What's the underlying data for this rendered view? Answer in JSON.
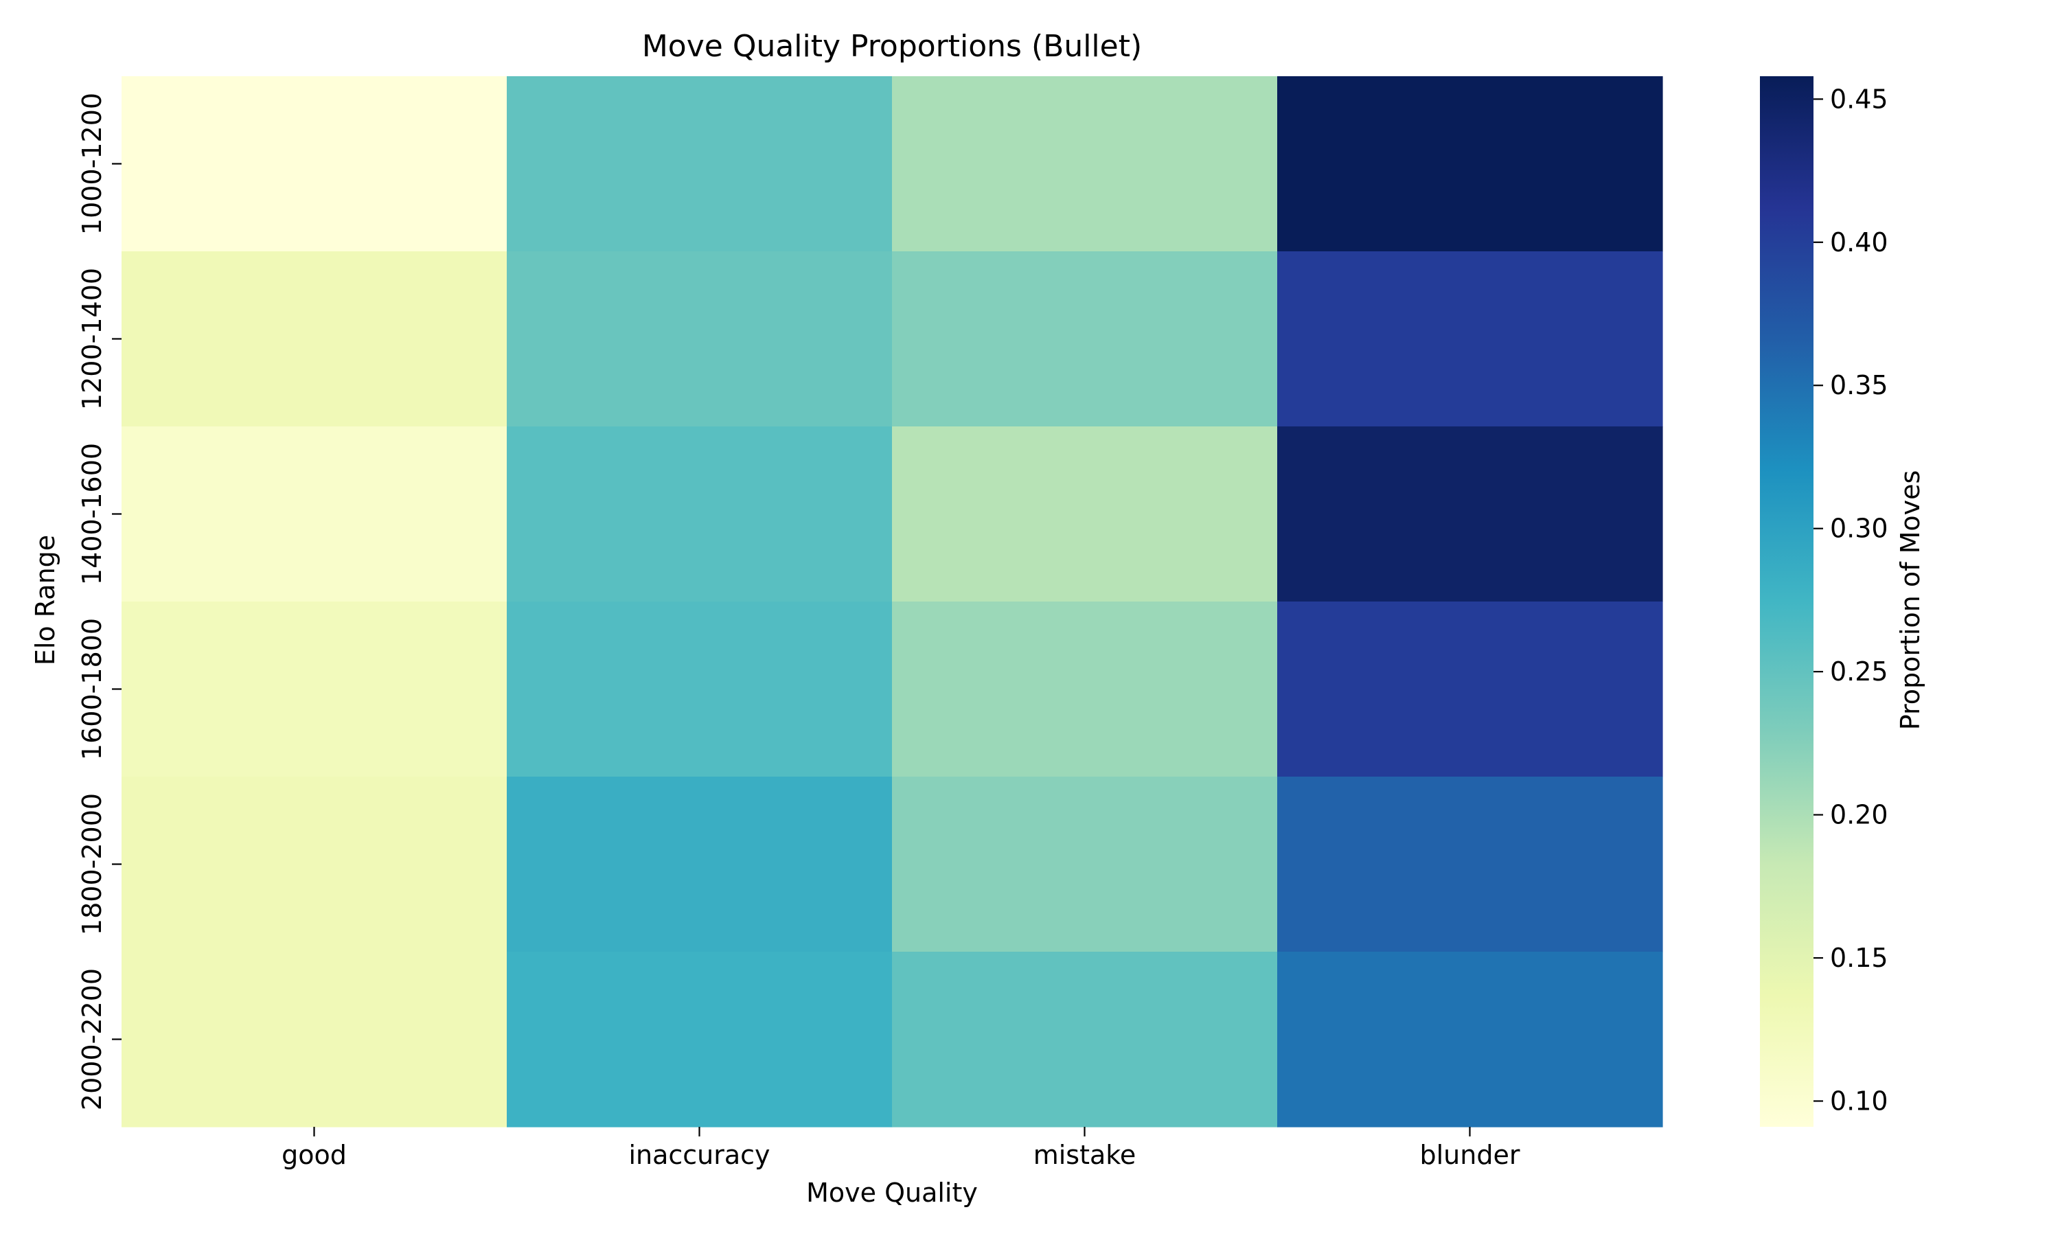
{
  "chart_data": {
    "type": "heatmap",
    "title": "Move Quality Proportions (Bullet)",
    "xlabel": "Move Quality",
    "ylabel": "Elo Range",
    "x_categories": [
      "good",
      "inaccuracy",
      "mistake",
      "blunder"
    ],
    "y_categories": [
      "1000-1200",
      "1200-1400",
      "1400-1600",
      "1600-1800",
      "1800-2000",
      "2000-2200"
    ],
    "values": [
      [
        0.091,
        0.25,
        0.201,
        0.458
      ],
      [
        0.13,
        0.245,
        0.226,
        0.403
      ],
      [
        0.107,
        0.257,
        0.193,
        0.447
      ],
      [
        0.124,
        0.262,
        0.211,
        0.403
      ],
      [
        0.13,
        0.284,
        0.223,
        0.363
      ],
      [
        0.13,
        0.279,
        0.251,
        0.347
      ]
    ],
    "colorbar": {
      "label": "Proportion of Moves",
      "colormap": "YlGnBu",
      "vmin": 0.091,
      "vmax": 0.458,
      "ticks": [
        "0.10",
        "0.15",
        "0.20",
        "0.25",
        "0.30",
        "0.35",
        "0.40",
        "0.45"
      ]
    },
    "grid": false
  }
}
